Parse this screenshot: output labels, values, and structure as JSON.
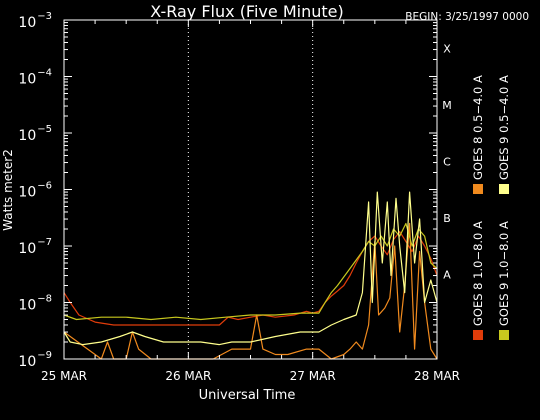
{
  "chart_data": {
    "type": "line",
    "title": "X-Ray Flux (Five Minute)",
    "begin_label": "BEGIN: 3/25/1997 0000",
    "ylabel": "Watts meter2",
    "xlabel": "Universal Time",
    "y_scale": "log",
    "ylim": [
      1e-09,
      0.001
    ],
    "y_ticks": [
      {
        "base": "10",
        "exp": "−3"
      },
      {
        "base": "10",
        "exp": "−4"
      },
      {
        "base": "10",
        "exp": "−5"
      },
      {
        "base": "10",
        "exp": "−6"
      },
      {
        "base": "10",
        "exp": "−7"
      },
      {
        "base": "10",
        "exp": "−8"
      },
      {
        "base": "10",
        "exp": "−9"
      }
    ],
    "x_ticks": [
      "25 MAR",
      "26 MAR",
      "27 MAR",
      "28 MAR"
    ],
    "xlim_days": [
      0,
      3
    ],
    "flare_classes": [
      "X",
      "M",
      "C",
      "B",
      "A"
    ],
    "grid": "dotted at day boundaries",
    "legend_placement": "right, vertical",
    "series": [
      {
        "name": "GOES 8 1.0−8.0 A",
        "color": "#e03c0a",
        "points": [
          [
            0.0,
            1.5e-08
          ],
          [
            0.05,
            1e-08
          ],
          [
            0.12,
            6e-09
          ],
          [
            0.25,
            4.5e-09
          ],
          [
            0.4,
            4e-09
          ],
          [
            0.5,
            4e-09
          ],
          [
            0.62,
            4e-09
          ],
          [
            0.8,
            4e-09
          ],
          [
            0.95,
            4e-09
          ],
          [
            1.1,
            4e-09
          ],
          [
            1.25,
            4e-09
          ],
          [
            1.32,
            5.5e-09
          ],
          [
            1.4,
            5e-09
          ],
          [
            1.5,
            5.5e-09
          ],
          [
            1.6,
            6e-09
          ],
          [
            1.7,
            5.5e-09
          ],
          [
            1.85,
            6e-09
          ],
          [
            1.95,
            7e-09
          ],
          [
            2.0,
            6.5e-09
          ],
          [
            2.05,
            7e-09
          ],
          [
            2.1,
            1e-08
          ],
          [
            2.15,
            1.3e-08
          ],
          [
            2.2,
            1.6e-08
          ],
          [
            2.25,
            2e-08
          ],
          [
            2.3,
            3e-08
          ],
          [
            2.35,
            5e-08
          ],
          [
            2.4,
            8e-08
          ],
          [
            2.45,
            1.2e-07
          ],
          [
            2.5,
            1.5e-07
          ],
          [
            2.55,
            1e-07
          ],
          [
            2.6,
            7e-08
          ],
          [
            2.65,
            1.3e-07
          ],
          [
            2.7,
            1.8e-07
          ],
          [
            2.75,
            1.2e-07
          ],
          [
            2.8,
            8e-08
          ],
          [
            2.85,
            1.5e-07
          ],
          [
            2.9,
            1e-07
          ],
          [
            2.95,
            6e-08
          ],
          [
            3.0,
            3e-08
          ]
        ]
      },
      {
        "name": "GOES 8 0.5−4.0 A",
        "color": "#f08a1e",
        "points": [
          [
            0.0,
            3e-09
          ],
          [
            0.3,
            1e-09
          ],
          [
            0.35,
            2e-09
          ],
          [
            0.4,
            1e-09
          ],
          [
            0.5,
            1e-09
          ],
          [
            0.55,
            3e-09
          ],
          [
            0.6,
            1.5e-09
          ],
          [
            0.7,
            1e-09
          ],
          [
            0.9,
            1e-09
          ],
          [
            1.0,
            1e-09
          ],
          [
            1.2,
            1e-09
          ],
          [
            1.35,
            1.5e-09
          ],
          [
            1.5,
            1.5e-09
          ],
          [
            1.55,
            6e-09
          ],
          [
            1.6,
            1.5e-09
          ],
          [
            1.7,
            1.2e-09
          ],
          [
            1.8,
            1.2e-09
          ],
          [
            1.95,
            1.5e-09
          ],
          [
            2.05,
            1.5e-09
          ],
          [
            2.15,
            1e-09
          ],
          [
            2.25,
            1.2e-09
          ],
          [
            2.3,
            1.5e-09
          ],
          [
            2.35,
            2e-09
          ],
          [
            2.4,
            1.5e-09
          ],
          [
            2.45,
            4e-09
          ],
          [
            2.5,
            1.2e-07
          ],
          [
            2.53,
            6e-09
          ],
          [
            2.58,
            8e-09
          ],
          [
            2.62,
            1.2e-08
          ],
          [
            2.66,
            1e-07
          ],
          [
            2.7,
            3e-09
          ],
          [
            2.74,
            2e-08
          ],
          [
            2.78,
            2.5e-07
          ],
          [
            2.82,
            1.5e-09
          ],
          [
            2.86,
            8e-08
          ],
          [
            2.9,
            1e-08
          ],
          [
            2.95,
            1.5e-09
          ],
          [
            3.0,
            1e-09
          ]
        ]
      },
      {
        "name": "GOES 9 1.0−8.0 A",
        "color": "#c8c81e",
        "points": [
          [
            0.0,
            6e-09
          ],
          [
            0.1,
            5e-09
          ],
          [
            0.3,
            5.5e-09
          ],
          [
            0.5,
            5.5e-09
          ],
          [
            0.7,
            5e-09
          ],
          [
            0.9,
            5.5e-09
          ],
          [
            1.1,
            5e-09
          ],
          [
            1.3,
            5.5e-09
          ],
          [
            1.5,
            6e-09
          ],
          [
            1.7,
            6e-09
          ],
          [
            1.9,
            6.5e-09
          ],
          [
            2.05,
            6.5e-09
          ],
          [
            2.1,
            1e-08
          ],
          [
            2.15,
            1.5e-08
          ],
          [
            2.2,
            2e-08
          ],
          [
            2.3,
            4e-08
          ],
          [
            2.4,
            8e-08
          ],
          [
            2.45,
            1.2e-07
          ],
          [
            2.5,
            1e-07
          ],
          [
            2.55,
            1.5e-07
          ],
          [
            2.6,
            1e-07
          ],
          [
            2.65,
            2e-07
          ],
          [
            2.7,
            1.5e-07
          ],
          [
            2.75,
            2.5e-07
          ],
          [
            2.8,
            1e-07
          ],
          [
            2.85,
            2e-07
          ],
          [
            2.9,
            1.5e-07
          ],
          [
            2.95,
            5e-08
          ],
          [
            3.0,
            4e-08
          ]
        ]
      },
      {
        "name": "GOES 9 0.5−4.0 A",
        "color": "#ffff8c",
        "points": [
          [
            0.0,
            3e-09
          ],
          [
            0.05,
            2e-09
          ],
          [
            0.15,
            1.8e-09
          ],
          [
            0.3,
            2e-09
          ],
          [
            0.45,
            2.5e-09
          ],
          [
            0.55,
            3e-09
          ],
          [
            0.65,
            2.5e-09
          ],
          [
            0.8,
            2e-09
          ],
          [
            0.95,
            2e-09
          ],
          [
            1.1,
            2e-09
          ],
          [
            1.25,
            1.8e-09
          ],
          [
            1.35,
            2e-09
          ],
          [
            1.5,
            2e-09
          ],
          [
            1.7,
            2.5e-09
          ],
          [
            1.9,
            3e-09
          ],
          [
            2.05,
            3e-09
          ],
          [
            2.15,
            4e-09
          ],
          [
            2.25,
            5e-09
          ],
          [
            2.35,
            6e-09
          ],
          [
            2.4,
            1.5e-08
          ],
          [
            2.45,
            6e-07
          ],
          [
            2.48,
            1e-08
          ],
          [
            2.52,
            9e-07
          ],
          [
            2.56,
            5e-08
          ],
          [
            2.6,
            6e-07
          ],
          [
            2.63,
            3e-08
          ],
          [
            2.67,
            7e-07
          ],
          [
            2.7,
            1e-07
          ],
          [
            2.74,
            1.5e-08
          ],
          [
            2.78,
            9e-07
          ],
          [
            2.82,
            5e-08
          ],
          [
            2.86,
            3e-07
          ],
          [
            2.9,
            1e-08
          ],
          [
            2.95,
            2.5e-08
          ],
          [
            3.0,
            1e-08
          ]
        ]
      }
    ]
  }
}
